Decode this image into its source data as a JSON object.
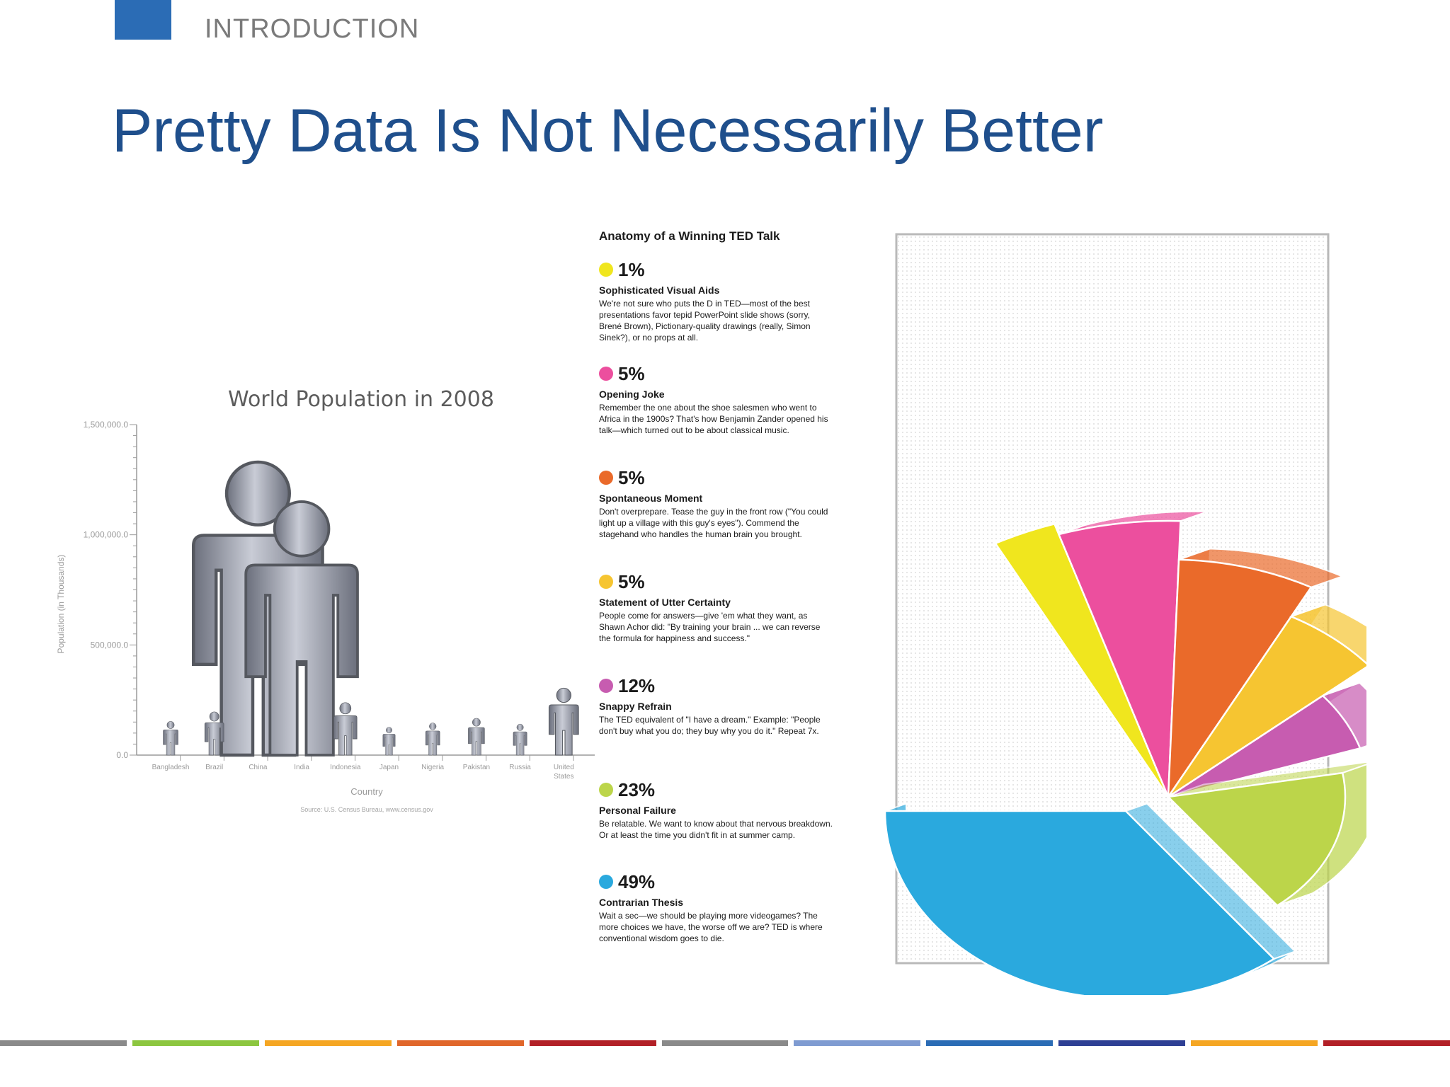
{
  "header": {
    "section": "INTRODUCTION",
    "title": "Pretty Data Is Not Necessarily Better"
  },
  "chart_data": [
    {
      "type": "bar",
      "title": "World Population in 2008",
      "xlabel": "Country",
      "ylabel": "Population (in Thousands)",
      "source": "Source: U.S. Census Bureau,  www.census.gov",
      "categories": [
        "Bangladesh",
        "Brazil",
        "China",
        "India",
        "Indonesia",
        "Japan",
        "Nigeria",
        "Pakistan",
        "Russia",
        "United States"
      ],
      "values": [
        153000,
        196000,
        1330000,
        1150000,
        238000,
        127000,
        146000,
        167000,
        141000,
        304000
      ],
      "ylim": [
        0,
        1500000
      ],
      "yticks": [
        "0.0",
        "500,000.0",
        "1,000,000.0",
        "1,500,000.0"
      ],
      "marker": "person-icon",
      "color": "#8f93a0"
    },
    {
      "type": "pie",
      "title": "Anatomy of a Winning TED Talk",
      "slices": [
        {
          "pct": "1%",
          "value": 1,
          "name": "Sophisticated Visual Aids",
          "color": "#f0e61e",
          "desc": "We're not sure who puts the D in TED—most of the best presentations favor tepid PowerPoint slide shows (sorry, Brené Brown), Pictionary-quality drawings (really, Simon Sinek?), or no props at all."
        },
        {
          "pct": "5%",
          "value": 5,
          "name": "Opening Joke",
          "color": "#ec4f9e",
          "desc": "Remember the one about the shoe salesmen who went to Africa in the 1900s? That's how Benjamin Zander opened his talk—which turned out to be about classical music."
        },
        {
          "pct": "5%",
          "value": 5,
          "name": "Spontaneous Moment",
          "color": "#ea6a2a",
          "desc": "Don't overprepare. Tease the guy in the front row (\"You could light up a village with this guy's eyes\"). Commend the stagehand who handles the human brain you brought."
        },
        {
          "pct": "5%",
          "value": 5,
          "name": "Statement of Utter Certainty",
          "color": "#f6c531",
          "desc": "People come for answers—give 'em what they want, as Shawn Achor did: \"By training your brain ... we can reverse the formula for happiness and success.\""
        },
        {
          "pct": "12%",
          "value": 12,
          "name": "Snappy Refrain",
          "color": "#c75cb0",
          "desc": "The TED equivalent of \"I have a dream.\" Example: \"People don't buy what you do; they buy why you do it.\" Repeat 7x."
        },
        {
          "pct": "23%",
          "value": 23,
          "name": "Personal Failure",
          "color": "#bcd54a",
          "desc": "Be relatable. We want to know about that nervous breakdown. Or at least the time you didn't fit in at summer camp."
        },
        {
          "pct": "49%",
          "value": 49,
          "name": "Contrarian Thesis",
          "color": "#2aa9de",
          "desc": "Wait a sec—we should be playing more videogames? The more choices we have, the worse off we are? TED is where conventional wisdom goes to die."
        }
      ]
    }
  ],
  "footer": {
    "bar_colors": [
      "#8a8a8a",
      "#8cc63f",
      "#f5a623",
      "#e0662a",
      "#b22027",
      "#8a8a8a",
      "#7f9bd1",
      "#2b6cb5",
      "#2e3f94",
      "#f5a623",
      "#b22027"
    ]
  }
}
